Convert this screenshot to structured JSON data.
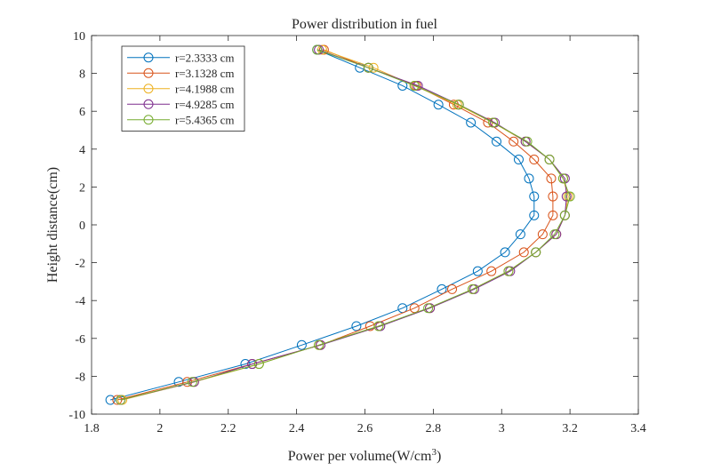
{
  "chart_data": {
    "type": "line",
    "title": "Power distribution in fuel",
    "xlabel": "Power per volume(W/cm",
    "xlabel_sup": "3",
    "xlabel_end": ")",
    "ylabel": "Height distance(cm)",
    "xlim": [
      1.8,
      3.4
    ],
    "ylim": [
      -10,
      10
    ],
    "xticks": [
      "1.8",
      "2",
      "2.2",
      "2.4",
      "2.6",
      "2.8",
      "3",
      "3.2",
      "3.4"
    ],
    "yticks": [
      "-10",
      "-8",
      "-6",
      "-4",
      "-2",
      "0",
      "2",
      "4",
      "6",
      "8",
      "10"
    ],
    "grid": false,
    "legend_position": "top-left",
    "y": [
      9.25,
      8.3,
      7.35,
      6.35,
      5.4,
      4.4,
      3.45,
      2.45,
      1.5,
      0.5,
      -0.5,
      -1.45,
      -2.45,
      -3.4,
      -4.4,
      -5.35,
      -6.35,
      -7.35,
      -8.3,
      -9.25
    ],
    "series": [
      {
        "name": "r=2.3333 cm",
        "color": "#0072bd",
        "x": [
          2.46,
          2.585,
          2.71,
          2.815,
          2.91,
          2.985,
          3.05,
          3.08,
          3.095,
          3.095,
          3.055,
          3.01,
          2.93,
          2.825,
          2.71,
          2.575,
          2.415,
          2.25,
          2.055,
          1.855
        ]
      },
      {
        "name": "r=3.1328 cm",
        "color": "#d95319",
        "x": [
          2.48,
          2.61,
          2.75,
          2.86,
          2.96,
          3.035,
          3.095,
          3.145,
          3.15,
          3.15,
          3.12,
          3.065,
          2.97,
          2.855,
          2.745,
          2.615,
          2.47,
          2.27,
          2.08,
          1.875
        ]
      },
      {
        "name": "r=4.1988 cm",
        "color": "#edb120",
        "x": [
          2.475,
          2.625,
          2.745,
          2.87,
          2.975,
          3.07,
          3.14,
          3.18,
          3.195,
          3.185,
          3.16,
          3.1,
          3.02,
          2.915,
          2.79,
          2.64,
          2.465,
          2.29,
          2.1,
          1.89
        ]
      },
      {
        "name": "r=4.9285 cm",
        "color": "#7e2f8e",
        "x": [
          2.465,
          2.61,
          2.755,
          2.875,
          2.98,
          3.07,
          3.14,
          3.185,
          3.19,
          3.185,
          3.16,
          3.1,
          3.025,
          2.92,
          2.79,
          2.645,
          2.47,
          2.27,
          2.1,
          1.885
        ]
      },
      {
        "name": "r=5.4365 cm",
        "color": "#77ac30",
        "x": [
          2.46,
          2.61,
          2.745,
          2.875,
          2.975,
          3.075,
          3.14,
          3.18,
          3.2,
          3.185,
          3.155,
          3.1,
          3.02,
          2.915,
          2.785,
          2.64,
          2.465,
          2.29,
          2.095,
          1.885
        ]
      }
    ]
  }
}
